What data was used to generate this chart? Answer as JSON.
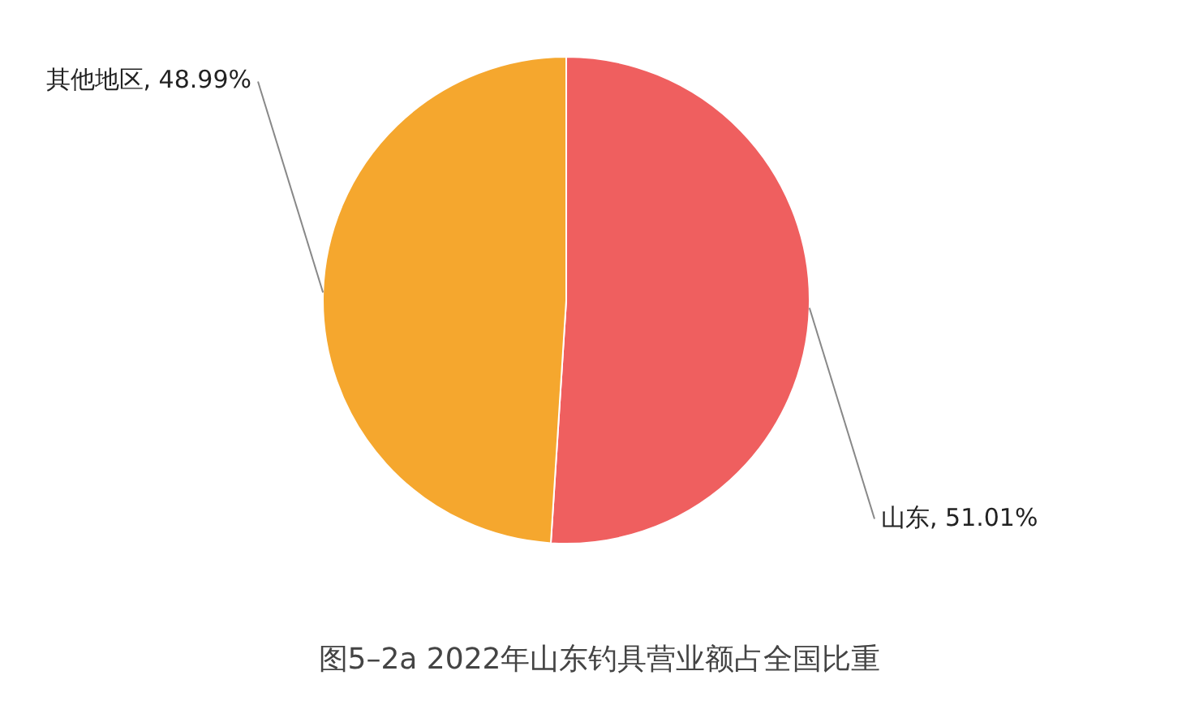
{
  "chart_data": {
    "type": "pie",
    "title": "图5–2a 2022年山东钓具营业额占全国比重",
    "categories": [
      "山东",
      "其他地区"
    ],
    "values": [
      51.01,
      48.99
    ],
    "colors": [
      "#ef5f5f",
      "#f5a72e"
    ],
    "value_labels": [
      "51.01%",
      "48.99%"
    ]
  }
}
